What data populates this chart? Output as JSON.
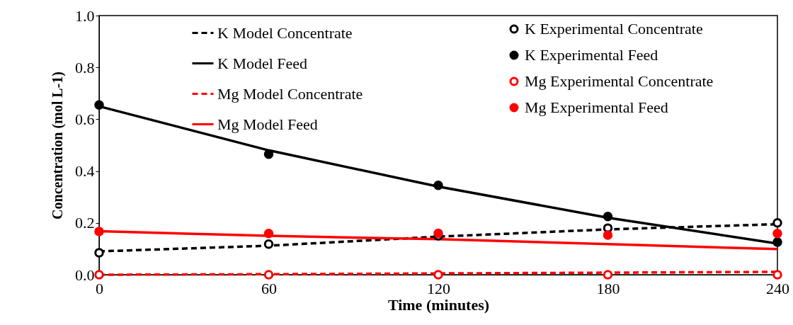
{
  "chart_data": {
    "type": "line",
    "xlabel": "Time (minutes)",
    "ylabel": "Concentration (mol L-1)",
    "x": [
      0,
      60,
      120,
      180,
      240
    ],
    "xlim": [
      0,
      240
    ],
    "xticks": [
      0,
      60,
      120,
      180,
      240
    ],
    "ylim": [
      0,
      1
    ],
    "yticks": [
      {
        "value": 0,
        "label": "0.0"
      },
      {
        "value": 0.2,
        "label": "0.2"
      },
      {
        "value": 0.4,
        "label": "0.4"
      },
      {
        "value": 0.6,
        "label": "0.6"
      },
      {
        "value": 0.8,
        "label": "0.8"
      },
      {
        "value": 1,
        "label": "1.0"
      }
    ],
    "grid": false,
    "legend": "top",
    "series": [
      {
        "name": "K Model Concentrate",
        "type": "line",
        "line_style": "dashed",
        "color": "#000000",
        "values": [
          0.09,
          0.112,
          0.147,
          0.175,
          0.195
        ]
      },
      {
        "name": "K Model Feed",
        "type": "line",
        "line_style": "solid",
        "color": "#000000",
        "values": [
          0.65,
          0.48,
          0.34,
          0.22,
          0.12
        ]
      },
      {
        "name": "Mg Model Concentrate",
        "type": "line",
        "line_style": "dashed",
        "color": "#ff0000",
        "values": [
          0,
          0.002,
          0.005,
          0.008,
          0.011
        ]
      },
      {
        "name": "Mg Model Feed",
        "type": "line",
        "line_style": "solid",
        "color": "#ff0000",
        "values": [
          0.168,
          0.15,
          0.137,
          0.118,
          0.099
        ]
      },
      {
        "name": "K Experimental Concentrate",
        "type": "scatter",
        "marker": "circle",
        "color": "#000000",
        "values": [
          0.085,
          0.118,
          0.15,
          0.18,
          0.2
        ]
      },
      {
        "name": "K Experimental Feed",
        "type": "scatter",
        "marker": "circle",
        "color": "#000000",
        "values": [
          0.655,
          0.465,
          0.345,
          0.225,
          0.126
        ],
        "errors": [
          0.015,
          0.015,
          null,
          null,
          null
        ]
      },
      {
        "name": "Mg Experimental Concentrate",
        "type": "scatter",
        "marker": "circle",
        "color": "#ff0000",
        "values": [
          0,
          0,
          0,
          0,
          0
        ]
      },
      {
        "name": "Mg Experimental Feed",
        "type": "scatter",
        "marker": "circle",
        "color": "#ff0000",
        "values": [
          0.167,
          0.159,
          0.16,
          0.153,
          0.159
        ]
      }
    ]
  }
}
